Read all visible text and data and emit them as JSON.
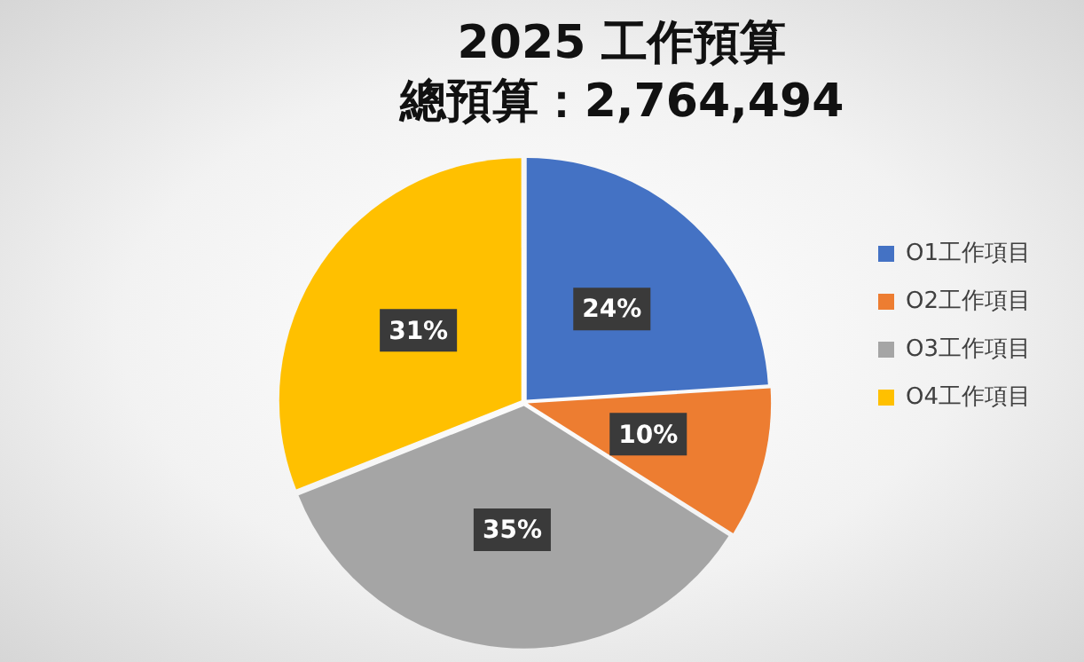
{
  "chart_data": {
    "type": "pie",
    "title": "2025 工作預算",
    "subtitle": "總預算：2,764,494",
    "categories": [
      "O1工作項目",
      "O2工作項目",
      "O3工作項目",
      "O4工作項目"
    ],
    "values": [
      24,
      10,
      35,
      31
    ],
    "value_labels": [
      "24%",
      "10%",
      "35%",
      "31%"
    ],
    "colors": [
      "#4472c4",
      "#ed7d31",
      "#a5a5a5",
      "#ffc000"
    ],
    "legend": "right"
  }
}
